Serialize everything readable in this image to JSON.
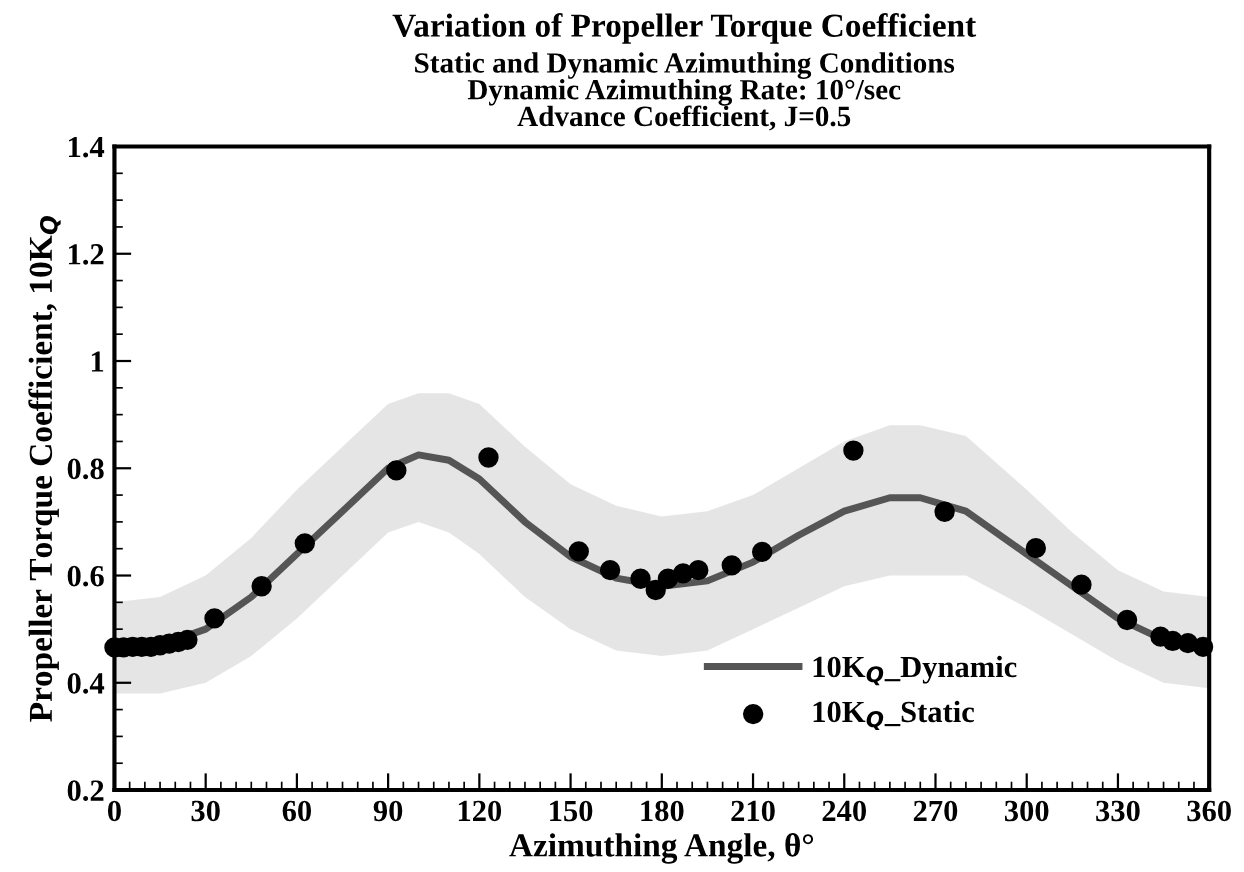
{
  "chart_data": {
    "type": "line",
    "title": "Variation of Propeller Torque Coefficient",
    "subtitle": "Static and Dynamic Azimuthing Conditions\nDynamic Azimuthing Rate: 10°/sec\nAdvance Coefficient, J=0.5",
    "xlabel": "Azimuthing Angle, θ°",
    "ylabel": "Propeller Torque Coefficient, 10K$_{Q}$",
    "xlim": [
      0,
      360
    ],
    "xticks": [
      0,
      30,
      60,
      90,
      120,
      150,
      180,
      210,
      240,
      270,
      300,
      330,
      360
    ],
    "ylim": [
      0.2,
      1.4
    ],
    "yticks": [
      0.2,
      0.4,
      0.6,
      0.8,
      1,
      1.2,
      1.4
    ],
    "grid": false,
    "legend": "bottom right",
    "series": [
      {
        "name": "10K$_{Q}$_Dynamic",
        "color": "#555555",
        "marker": "none",
        "line_style": "solid",
        "x": [
          0,
          15,
          30,
          45,
          60,
          75,
          90,
          100,
          110,
          120,
          135,
          150,
          165,
          180,
          195,
          210,
          225,
          240,
          255,
          265,
          280,
          300,
          315,
          330,
          345,
          360
        ],
        "values": [
          0.465,
          0.47,
          0.5,
          0.56,
          0.64,
          0.72,
          0.8,
          0.825,
          0.815,
          0.78,
          0.7,
          0.635,
          0.595,
          0.58,
          0.59,
          0.625,
          0.675,
          0.72,
          0.745,
          0.745,
          0.72,
          0.64,
          0.58,
          0.52,
          0.48,
          0.47
        ],
        "lower": [
          0.38,
          0.38,
          0.4,
          0.45,
          0.52,
          0.6,
          0.68,
          0.7,
          0.68,
          0.64,
          0.56,
          0.5,
          0.46,
          0.45,
          0.46,
          0.5,
          0.54,
          0.58,
          0.6,
          0.6,
          0.6,
          0.54,
          0.49,
          0.44,
          0.4,
          0.39
        ],
        "upper": [
          0.55,
          0.56,
          0.6,
          0.67,
          0.76,
          0.84,
          0.92,
          0.94,
          0.94,
          0.92,
          0.84,
          0.77,
          0.73,
          0.71,
          0.72,
          0.75,
          0.8,
          0.85,
          0.88,
          0.88,
          0.86,
          0.76,
          0.68,
          0.61,
          0.57,
          0.56
        ]
      },
      {
        "name": "10K$_{Q}$_Static",
        "type": "scatter",
        "color": "#000000",
        "marker": "circle",
        "x": [
          0,
          3,
          6,
          9,
          12,
          15,
          18,
          21,
          24,
          32.9,
          48.4,
          62.6,
          92.7,
          123,
          152.7,
          163,
          173,
          178,
          182,
          187,
          192,
          203,
          213,
          243,
          273,
          303,
          318,
          333,
          344,
          348,
          353,
          358
        ],
        "values": [
          0.466,
          0.466,
          0.467,
          0.467,
          0.467,
          0.47,
          0.473,
          0.476,
          0.48,
          0.52,
          0.58,
          0.66,
          0.796,
          0.82,
          0.645,
          0.61,
          0.594,
          0.573,
          0.594,
          0.604,
          0.61,
          0.619,
          0.644,
          0.833,
          0.719,
          0.651,
          0.583,
          0.517,
          0.486,
          0.478,
          0.474,
          0.467
        ]
      }
    ]
  }
}
